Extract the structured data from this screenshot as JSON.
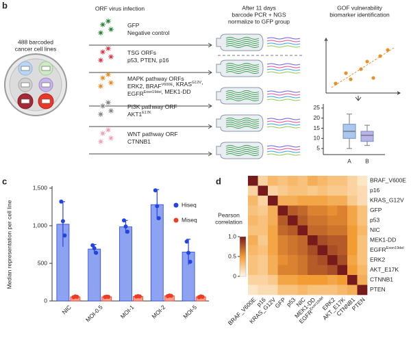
{
  "panel_b": {
    "label": "b",
    "left_title": [
      "488 barcoded",
      "cancer cell lines"
    ],
    "infection_title": "ORF virus infection",
    "groups": [
      {
        "color": "#2e8b3e",
        "lines": [
          [
            "GFP"
          ],
          [
            "Negative control"
          ]
        ]
      },
      {
        "color": "#d9414f",
        "lines": [
          [
            "TSG ORFs"
          ],
          [
            "p53, PTEN, p16"
          ]
        ]
      },
      {
        "color": "#e8902a",
        "lines": [
          [
            "MAPK pathway ORFs"
          ],
          [
            "ERK2, BRAF",
            {
              "sup": "V600E"
            },
            ", KRAS",
            {
              "sup": "G12V"
            },
            ","
          ],
          [
            "EGFR",
            {
              "sup": "Exon19del"
            },
            ", MEK1-DD"
          ]
        ]
      },
      {
        "color": "#8a8a8a",
        "lines": [
          [
            "PI3K pathway ORF"
          ],
          [
            "AKT1",
            {
              "sup": "E17K"
            }
          ]
        ]
      },
      {
        "color": "#f0a3b5",
        "lines": [
          [
            "WNT pathway ORF"
          ],
          [
            "CTNNB1"
          ]
        ]
      }
    ],
    "middle_title": [
      "After 11 days",
      "barcode PCR + NGS",
      "normalize to GFP group"
    ],
    "right_title": [
      "GOF vulnerability",
      "biomarker identification"
    ],
    "boxplot": {
      "type": "box",
      "categories": [
        "A",
        "B"
      ],
      "colors": [
        "#aac8ee",
        "#b7b5ea"
      ],
      "boxes": [
        {
          "min": 5,
          "q1": 10,
          "median": 13.5,
          "q3": 17,
          "max": 22
        },
        {
          "min": 6.5,
          "q1": 8.5,
          "median": 11.5,
          "q3": 13.5,
          "max": 16.5
        }
      ],
      "ylim": [
        2,
        27
      ],
      "yticks": [
        5,
        10,
        15,
        20,
        25
      ]
    }
  },
  "chart_data": {
    "type": "bar",
    "panel_label": "c",
    "y_label": "Median representation per cell line",
    "categories": [
      "NIC",
      "MOI-0.5",
      "MOI-1",
      "MOI-2",
      "MOI-5"
    ],
    "series": [
      {
        "name": "Hiseq",
        "color": "#2344e0",
        "values": [
          1020,
          690,
          985,
          1280,
          650
        ],
        "errors": [
          300,
          60,
          85,
          200,
          170
        ],
        "points": [
          [
            1320,
            1060,
            870
          ],
          [
            740,
            700,
            640
          ],
          [
            1070,
            990,
            920
          ],
          [
            1470,
            1260,
            1100
          ],
          [
            790,
            640,
            520
          ]
        ]
      },
      {
        "name": "Miseq",
        "color": "#ee3b22",
        "values": [
          55,
          55,
          60,
          68,
          55
        ],
        "errors": [
          12,
          8,
          10,
          12,
          10
        ],
        "points": [
          [
            50,
            60,
            55
          ],
          [
            52,
            58,
            55
          ],
          [
            58,
            64,
            60
          ],
          [
            64,
            72,
            68
          ],
          [
            50,
            60,
            55
          ]
        ]
      }
    ],
    "ylim": [
      0,
      1500
    ],
    "yticks": [
      0,
      500,
      {
        "value": 1000,
        "label": "1,000"
      },
      {
        "value": 1500,
        "label": "1,500"
      }
    ],
    "legend": "top-right"
  },
  "heatmap": {
    "type": "heatmap",
    "panel_label": "d",
    "labels": [
      "BRAF_V600E",
      "p16",
      "KRAS_G12V",
      "GFP",
      "p53",
      "NIC",
      "MEK1-DD",
      {
        "text": "EGFR",
        "sup": "Exon19del"
      },
      "ERK2",
      "AKT_E17K",
      "CTNNB1",
      "PTEN"
    ],
    "matrix": [
      [
        1,
        0.2,
        0.35,
        0.3,
        0.35,
        0.3,
        0.4,
        0.35,
        0.3,
        0.3,
        0.2,
        0.1
      ],
      [
        0.2,
        1,
        0.2,
        0.25,
        0.3,
        0.3,
        0.25,
        0.3,
        0.25,
        0.25,
        0.2,
        0.15
      ],
      [
        0.35,
        0.2,
        1,
        0.4,
        0.4,
        0.45,
        0.45,
        0.45,
        0.4,
        0.4,
        0.25,
        0.15
      ],
      [
        0.3,
        0.25,
        0.4,
        1,
        0.75,
        0.7,
        0.6,
        0.6,
        0.55,
        0.6,
        0.45,
        0.3
      ],
      [
        0.35,
        0.3,
        0.4,
        0.75,
        1,
        0.75,
        0.65,
        0.65,
        0.6,
        0.6,
        0.45,
        0.3
      ],
      [
        0.3,
        0.3,
        0.45,
        0.7,
        0.75,
        1,
        0.7,
        0.7,
        0.65,
        0.65,
        0.5,
        0.35
      ],
      [
        0.4,
        0.25,
        0.45,
        0.6,
        0.65,
        0.7,
        1,
        0.8,
        0.75,
        0.75,
        0.5,
        0.3
      ],
      [
        0.35,
        0.3,
        0.45,
        0.6,
        0.65,
        0.7,
        0.8,
        1,
        0.8,
        0.75,
        0.5,
        0.3
      ],
      [
        0.3,
        0.25,
        0.4,
        0.55,
        0.6,
        0.65,
        0.75,
        0.8,
        1,
        0.8,
        0.45,
        0.3
      ],
      [
        0.3,
        0.25,
        0.4,
        0.6,
        0.6,
        0.65,
        0.75,
        0.75,
        0.8,
        1,
        0.5,
        0.35
      ],
      [
        0.2,
        0.2,
        0.25,
        0.45,
        0.45,
        0.5,
        0.5,
        0.5,
        0.45,
        0.5,
        1,
        0.4
      ],
      [
        0.1,
        0.15,
        0.15,
        0.3,
        0.3,
        0.35,
        0.3,
        0.3,
        0.3,
        0.35,
        0.4,
        1
      ]
    ],
    "colors": [
      "#fff8e8",
      "#f39c34",
      "#761a1c"
    ],
    "colorbar": {
      "title": [
        "Pearson",
        "correlation"
      ],
      "lim": [
        0,
        1
      ],
      "ticks": [
        0,
        0.5,
        {
          "value": 1,
          "label": "1.0"
        }
      ]
    }
  }
}
